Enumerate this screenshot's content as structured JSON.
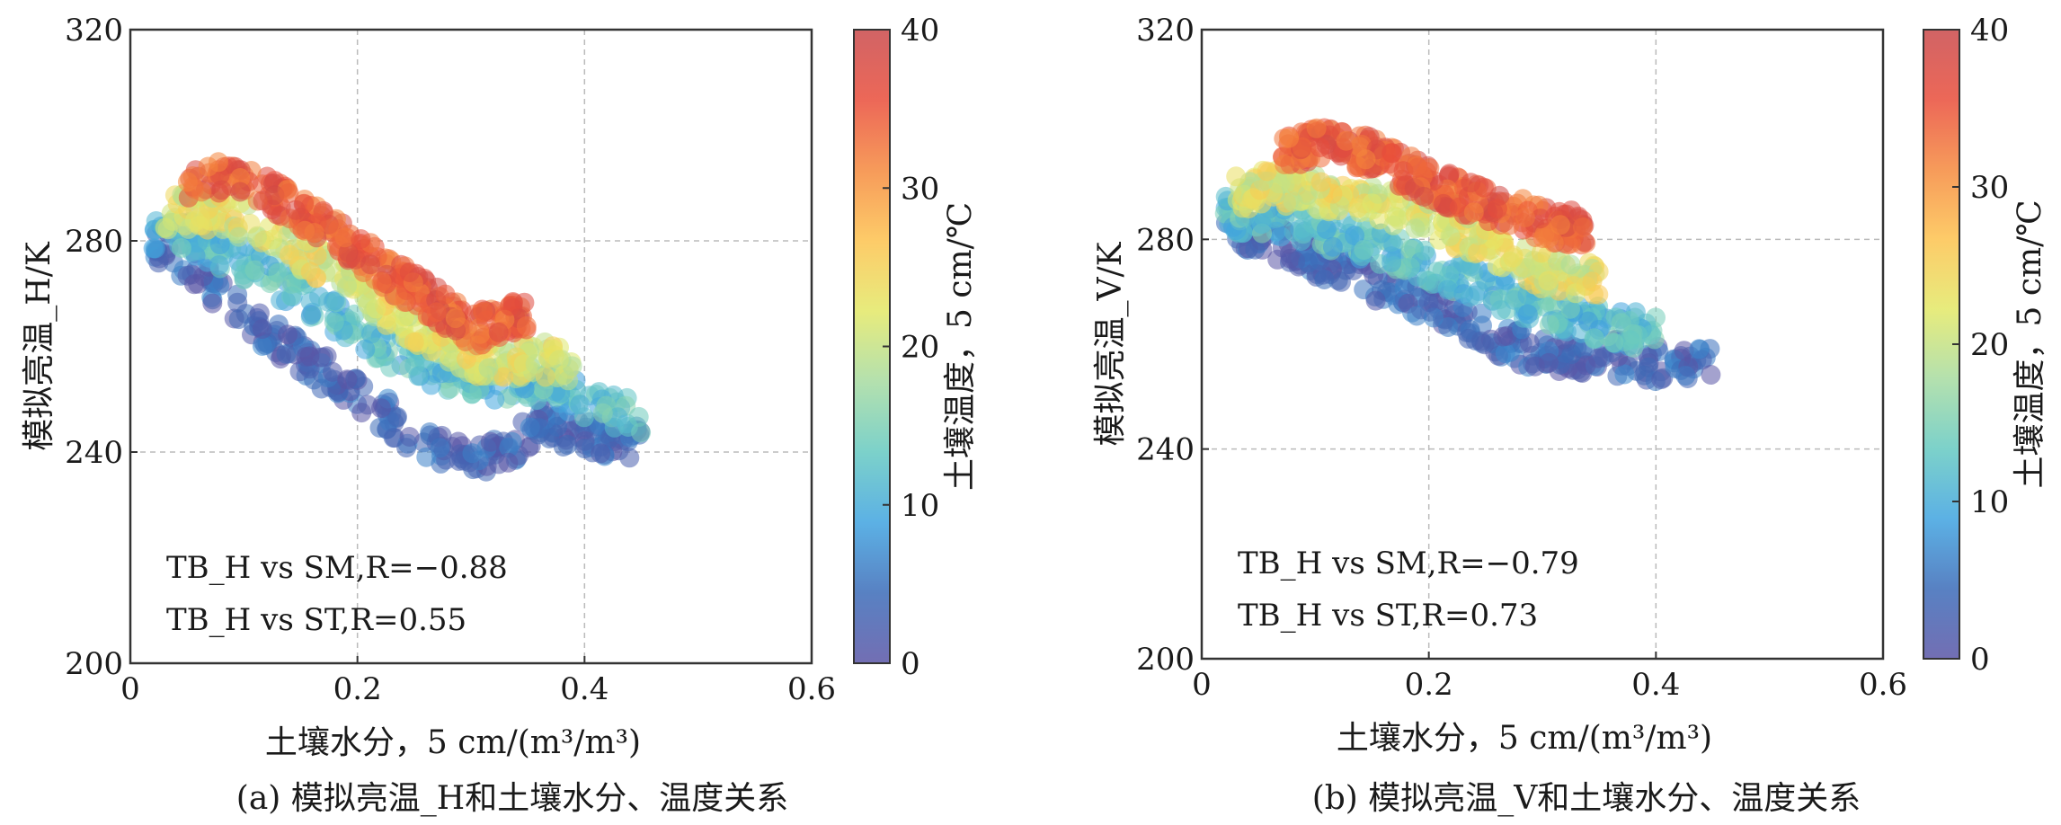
{
  "colors": {
    "axis": "#333333",
    "grid": "#bbbbbb",
    "colormap": [
      "#5a55a6",
      "#3b6bb8",
      "#3fa3e0",
      "#65c9c1",
      "#a6dba0",
      "#e3e866",
      "#fdc24e",
      "#f5893d",
      "#e94d3a",
      "#c9484a"
    ]
  },
  "chart_data": [
    {
      "type": "scatter",
      "panel": "a",
      "caption": "(a) 模拟亮温_H和土壤水分、温度关系",
      "xlabel": "土壤水分，5 cm/(m³/m³)",
      "ylabel": "模拟亮温_H/K",
      "colorbar_label": "土壤温度，5 cm/℃",
      "xlim": [
        0,
        0.6
      ],
      "ylim": [
        200,
        320
      ],
      "clim": [
        0,
        40
      ],
      "xticks": [
        "0",
        "0.2",
        "0.4",
        "0.6"
      ],
      "yticks": [
        "200",
        "240",
        "280",
        "320"
      ],
      "cticks": [
        "0",
        "10",
        "20",
        "30",
        "40"
      ],
      "grid": true,
      "annotations": [
        "TB_H vs SM,R=−0.88",
        "TB_H vs ST,R=0.55"
      ],
      "bands": [
        {
          "st": 3,
          "x": [
            0.02,
            0.05,
            0.1,
            0.15,
            0.2,
            0.25,
            0.3,
            0.33,
            0.36,
            0.4,
            0.45
          ],
          "y": [
            280,
            276,
            266,
            258,
            251,
            243,
            238,
            240,
            246,
            243,
            242
          ]
        },
        {
          "st": 12,
          "x": [
            0.02,
            0.05,
            0.1,
            0.15,
            0.2,
            0.25,
            0.3,
            0.33,
            0.36,
            0.4,
            0.45
          ],
          "y": [
            282,
            281,
            276,
            270,
            263,
            257,
            254,
            253,
            253,
            250,
            246
          ]
        },
        {
          "st": 22,
          "x": [
            0.03,
            0.06,
            0.1,
            0.15,
            0.2,
            0.25,
            0.3,
            0.33,
            0.36,
            0.39
          ],
          "y": [
            285,
            286,
            284,
            278,
            271,
            264,
            258,
            257,
            258,
            256
          ]
        },
        {
          "st": 35,
          "x": [
            0.05,
            0.08,
            0.12,
            0.16,
            0.2,
            0.24,
            0.27,
            0.3,
            0.33,
            0.35
          ],
          "y": [
            290,
            292,
            289,
            284,
            278,
            272,
            268,
            263,
            265,
            266
          ]
        }
      ]
    },
    {
      "type": "scatter",
      "panel": "b",
      "caption": "(b) 模拟亮温_V和土壤水分、温度关系",
      "xlabel": "土壤水分，5 cm/(m³/m³)",
      "ylabel": "模拟亮温_V/K",
      "colorbar_label": "土壤温度，5 cm/℃",
      "xlim": [
        0,
        0.6
      ],
      "ylim": [
        200,
        320
      ],
      "clim": [
        0,
        40
      ],
      "xticks": [
        "0",
        "0.2",
        "0.4",
        "0.6"
      ],
      "yticks": [
        "200",
        "240",
        "280",
        "320"
      ],
      "cticks": [
        "0",
        "10",
        "20",
        "30",
        "40"
      ],
      "grid": true,
      "annotations": [
        "TB_H vs SM,R=−0.79",
        "TB_H vs ST,R=0.73"
      ],
      "bands": [
        {
          "st": 3,
          "x": [
            0.02,
            0.06,
            0.1,
            0.15,
            0.2,
            0.25,
            0.3,
            0.35,
            0.4,
            0.45
          ],
          "y": [
            282,
            280,
            276,
            272,
            268,
            262,
            258,
            258,
            256,
            257
          ]
        },
        {
          "st": 12,
          "x": [
            0.02,
            0.06,
            0.1,
            0.15,
            0.2,
            0.25,
            0.3,
            0.35,
            0.4
          ],
          "y": [
            285,
            284,
            282,
            279,
            275,
            271,
            267,
            264,
            262
          ]
        },
        {
          "st": 22,
          "x": [
            0.03,
            0.06,
            0.1,
            0.15,
            0.2,
            0.25,
            0.3,
            0.35
          ],
          "y": [
            289,
            290,
            289,
            287,
            284,
            279,
            274,
            272
          ]
        },
        {
          "st": 35,
          "x": [
            0.07,
            0.1,
            0.14,
            0.18,
            0.22,
            0.26,
            0.3,
            0.34
          ],
          "y": [
            296,
            298,
            297,
            293,
            289,
            286,
            283,
            282
          ]
        }
      ]
    }
  ]
}
